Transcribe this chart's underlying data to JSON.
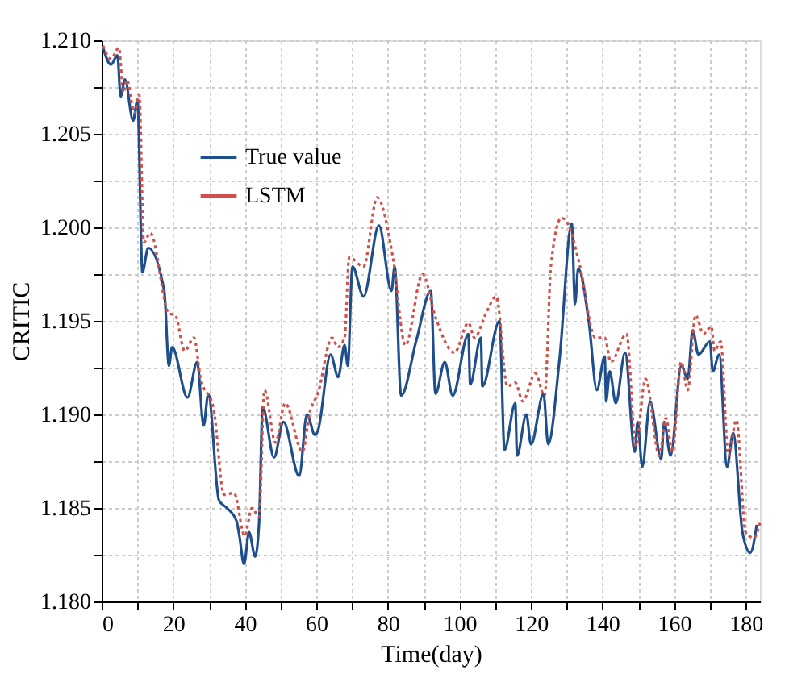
{
  "chart_data": {
    "type": "line",
    "xlabel": "Time(day)",
    "ylabel": "CRITIC",
    "xlim": [
      0,
      184
    ],
    "ylim": [
      1.18,
      1.21
    ],
    "xticks": [
      0,
      {
        "value": 10,
        "label": null
      },
      20,
      {
        "value": 30,
        "label": null
      },
      40,
      {
        "value": 50,
        "label": null
      },
      60,
      {
        "value": 70,
        "label": null
      },
      80,
      {
        "value": 90,
        "label": null
      },
      100,
      {
        "value": 110,
        "label": null
      },
      120,
      {
        "value": 130,
        "label": null
      },
      140,
      {
        "value": 150,
        "label": null
      },
      160,
      {
        "value": 170,
        "label": null
      },
      180
    ],
    "yticks": [
      {
        "value": 1.18,
        "label": "1.180"
      },
      {
        "value": 1.1825,
        "label": null
      },
      {
        "value": 1.185,
        "label": "1.185"
      },
      {
        "value": 1.1875,
        "label": null
      },
      {
        "value": 1.19,
        "label": "1.190"
      },
      {
        "value": 1.1925,
        "label": null
      },
      {
        "value": 1.195,
        "label": "1.195"
      },
      {
        "value": 1.1975,
        "label": null
      },
      {
        "value": 1.2,
        "label": "1.200"
      },
      {
        "value": 1.2025,
        "label": null
      },
      {
        "value": 1.205,
        "label": "1.205"
      },
      {
        "value": 1.2075,
        "label": null
      },
      {
        "value": 1.21,
        "label": "1.210"
      }
    ],
    "grid": true,
    "legend": "top left",
    "marker": "none",
    "series": [
      {
        "name": "True value",
        "color": "#1f4e8c",
        "line_style": "solid",
        "x": [
          0.4,
          2.6,
          4.4,
          5.3,
          6.5,
          8.8,
          10,
          11.4,
          13,
          17.5,
          18.8,
          19.7,
          24,
          26.7,
          28.5,
          29.8,
          32.8,
          35,
          37.7,
          38.5,
          39.8,
          41.2,
          42.9,
          44,
          45,
          48.2,
          50.8,
          55.2,
          57.4,
          59.6,
          60.4,
          64,
          66.1,
          67.9,
          68.8,
          70.1,
          73.2,
          77.5,
          81,
          81.9,
          83.7,
          88,
          92,
          93.3,
          95.9,
          98.1,
          102.5,
          103,
          106,
          106.4,
          111.2,
          112.6,
          115.6,
          116.1,
          118.7,
          120,
          123.5,
          124.8,
          128,
          131.4,
          132.3,
          133.2,
          136.2,
          138.4,
          140.6,
          141,
          142,
          143.7,
          146.3,
          149,
          149.8,
          151.1,
          153.3,
          156.4,
          157.2,
          159,
          162,
          163.8,
          165.2,
          166.8,
          170,
          170.8,
          172.6,
          174.8,
          176.5,
          179.1,
          181.3,
          183.1
        ],
        "values": [
          1.2096,
          1.2087,
          1.2092,
          1.207,
          1.2079,
          1.2057,
          1.2068,
          1.1976,
          1.1989,
          1.1966,
          1.1926,
          1.1936,
          1.1909,
          1.1928,
          1.1894,
          1.1911,
          1.1854,
          1.185,
          1.1843,
          1.1835,
          1.182,
          1.1837,
          1.1824,
          1.1842,
          1.1904,
          1.1877,
          1.1896,
          1.1867,
          1.19,
          1.1889,
          1.1891,
          1.1932,
          1.192,
          1.1937,
          1.1926,
          1.1979,
          1.1963,
          1.2001,
          1.1966,
          1.1979,
          1.191,
          1.194,
          1.1966,
          1.1911,
          1.1928,
          1.191,
          1.1943,
          1.1916,
          1.1941,
          1.1915,
          1.195,
          1.1881,
          1.1906,
          1.1878,
          1.19,
          1.1884,
          1.1911,
          1.1884,
          1.193,
          1.2002,
          1.1959,
          1.1978,
          1.1949,
          1.1913,
          1.1931,
          1.1907,
          1.1923,
          1.1906,
          1.1933,
          1.188,
          1.1896,
          1.1872,
          1.1907,
          1.1876,
          1.1896,
          1.1878,
          1.1926,
          1.1919,
          1.1945,
          1.1932,
          1.1939,
          1.1923,
          1.1932,
          1.1872,
          1.189,
          1.1837,
          1.1826,
          1.1841
        ]
      },
      {
        "name": "LSTM",
        "color": "#d0504a",
        "line_style": "dotted",
        "x": [
          0.4,
          2.6,
          4.8,
          6.1,
          7,
          9.2,
          10.5,
          11.8,
          13.6,
          18.8,
          20.6,
          23.2,
          25.8,
          27.6,
          31.3,
          34.2,
          37,
          40,
          42,
          44,
          45.5,
          48.6,
          51.3,
          56.1,
          58.3,
          60.4,
          64.4,
          66,
          67.9,
          69.2,
          73.2,
          77,
          81.4,
          84.9,
          89.7,
          93.3,
          98.6,
          102.5,
          104.2,
          107.4,
          110.3,
          113.4,
          115.6,
          117.7,
          121.2,
          123.8,
          125.6,
          128.5,
          130,
          133.6,
          138,
          140.6,
          142.3,
          146.7,
          149.3,
          152,
          155.9,
          157.7,
          159.5,
          162,
          163.8,
          166,
          168.2,
          170.4,
          171.3,
          173,
          175.2,
          177.4,
          180,
          182.3,
          184
        ],
        "values": [
          1.2097,
          1.209,
          1.2096,
          1.2072,
          1.2079,
          1.2061,
          1.2071,
          1.1992,
          1.1997,
          1.1954,
          1.1953,
          1.1934,
          1.1941,
          1.192,
          1.1903,
          1.1857,
          1.1858,
          1.1835,
          1.185,
          1.1845,
          1.1913,
          1.1885,
          1.1906,
          1.188,
          1.1902,
          1.1911,
          1.1941,
          1.1936,
          1.1941,
          1.1984,
          1.1979,
          1.2016,
          1.1984,
          1.1937,
          1.1975,
          1.1952,
          1.1933,
          1.1949,
          1.1941,
          1.1954,
          1.1963,
          1.1915,
          1.1917,
          1.1907,
          1.1922,
          1.191,
          1.198,
          1.2005,
          1.2003,
          1.198,
          1.1941,
          1.1941,
          1.1928,
          1.1943,
          1.1883,
          1.1919,
          1.1878,
          1.1898,
          1.188,
          1.1928,
          1.1913,
          1.1953,
          1.1943,
          1.1947,
          1.1934,
          1.1939,
          1.1878,
          1.1897,
          1.1837,
          1.1834,
          1.1842
        ]
      }
    ]
  }
}
